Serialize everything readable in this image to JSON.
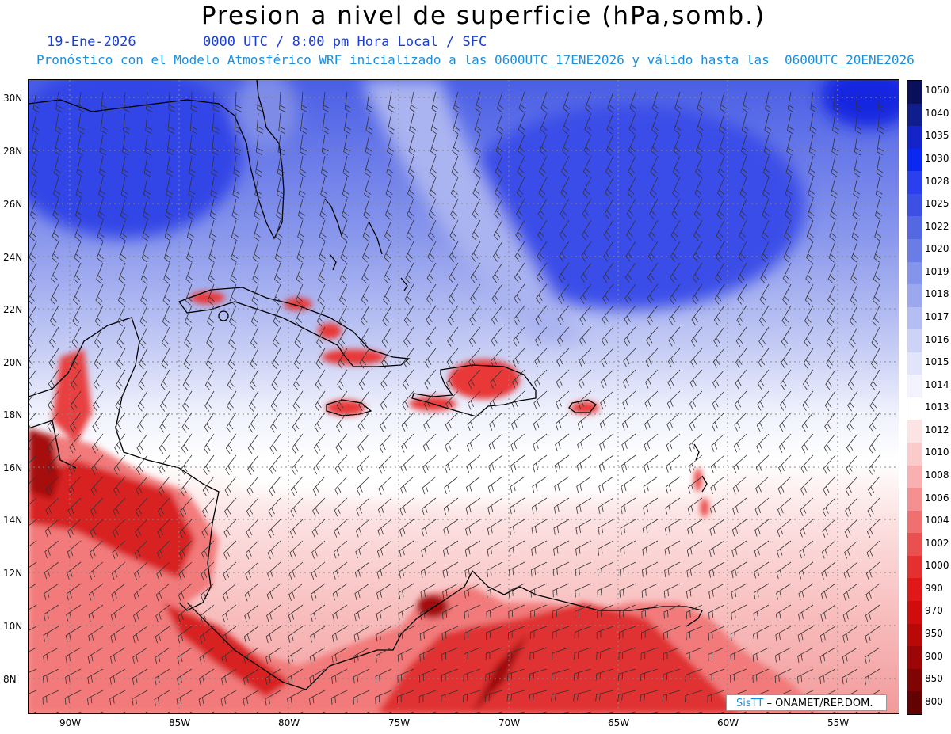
{
  "title": "Presion a nivel de superficie (hPa,somb.)",
  "subtitle": {
    "date": "19-Ene-2026",
    "time": "0000 UTC / 8:00 pm Hora Local / SFC",
    "model_line": "Pronóstico con el Modelo Atmosférico WRF inicializado a las 0600UTC_17ENE2026 y válido hasta las  0600UTC_20ENE2026"
  },
  "axes": {
    "lat_labels": [
      "30N",
      "28N",
      "26N",
      "24N",
      "22N",
      "20N",
      "18N",
      "16N",
      "14N",
      "12N",
      "10N",
      "8N"
    ],
    "lon_labels": [
      "90W",
      "85W",
      "80W",
      "75W",
      "70W",
      "65W",
      "60W",
      "55W"
    ]
  },
  "colorbar": {
    "labels": [
      "1050",
      "1040",
      "1035",
      "1030",
      "1028",
      "1025",
      "1022",
      "1020",
      "1019",
      "1018",
      "1017",
      "1016",
      "1015",
      "1014",
      "1013",
      "1012",
      "1010",
      "1008",
      "1006",
      "1004",
      "1002",
      "1000",
      "990",
      "970",
      "950",
      "900",
      "850",
      "800"
    ],
    "colors": [
      "#0a0f5a",
      "#101d8c",
      "#1424c8",
      "#0a28f0",
      "#2a40ee",
      "#3c50e6",
      "#5468e4",
      "#6a7ce6",
      "#8494ea",
      "#9ca8ee",
      "#b4bef2",
      "#cdd3f6",
      "#e2e5fa",
      "#f2f3fc",
      "#ffffff",
      "#fde4e4",
      "#fbcaca",
      "#f9b0b0",
      "#f59090",
      "#f07070",
      "#ea5050",
      "#e43030",
      "#e01818",
      "#d00c0c",
      "#b80808",
      "#9c0606",
      "#800404",
      "#620202"
    ]
  },
  "credit": {
    "brand": "SisTT",
    "org": "– ONAMET/REP.DOM."
  }
}
